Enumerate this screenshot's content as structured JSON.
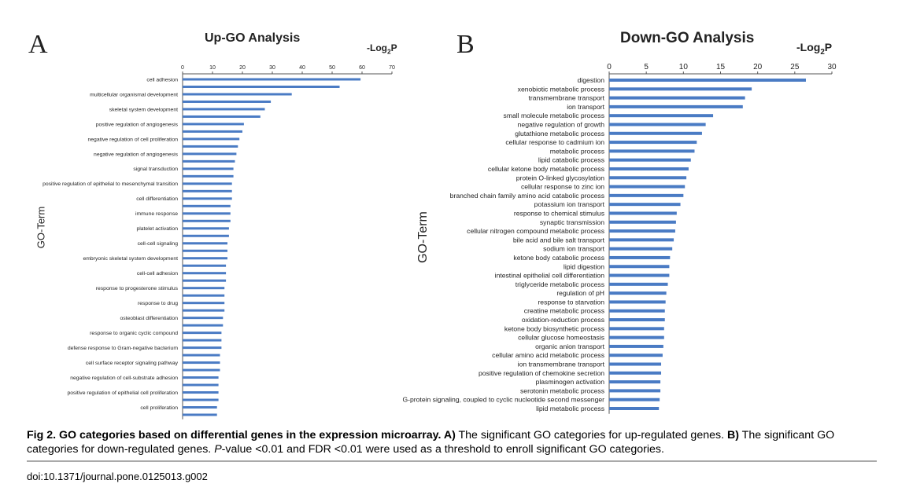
{
  "panels": [
    {
      "letter": "A",
      "title": "Up-GO Analysis",
      "axis_label": "-Log",
      "axis_label_sub": "2",
      "axis_label_tail": "P",
      "ylabel": "GO-Term"
    },
    {
      "letter": "B",
      "title": "Down-GO Analysis",
      "axis_label": "-Log",
      "axis_label_sub": "2",
      "axis_label_tail": "P",
      "ylabel": "GO-Term"
    }
  ],
  "chart_data": [
    {
      "type": "bar",
      "orientation": "horizontal",
      "title": "Up-GO Analysis",
      "xlabel": "-Log2P",
      "ylabel": "GO-Term",
      "xlim": [
        0,
        70
      ],
      "xticks": [
        0,
        10,
        20,
        30,
        40,
        50,
        60,
        70
      ],
      "bar_color": "#4a7bc4",
      "rows": [
        {
          "label": "cell adhesion",
          "value": 59.5,
          "labeled": true
        },
        {
          "label": "",
          "value": 52.5,
          "labeled": false
        },
        {
          "label": "multicellular organismal development",
          "value": 36.5,
          "labeled": true
        },
        {
          "label": "",
          "value": 29.5,
          "labeled": false
        },
        {
          "label": "skeletal system development",
          "value": 27.5,
          "labeled": true
        },
        {
          "label": "",
          "value": 26,
          "labeled": false
        },
        {
          "label": "positive regulation of angiogenesis",
          "value": 20.5,
          "labeled": true
        },
        {
          "label": "",
          "value": 20,
          "labeled": false
        },
        {
          "label": "negative regulation of cell proliferation",
          "value": 19,
          "labeled": true
        },
        {
          "label": "",
          "value": 18.5,
          "labeled": false
        },
        {
          "label": "negative regulation of angiogenesis",
          "value": 18,
          "labeled": true
        },
        {
          "label": "",
          "value": 17.5,
          "labeled": false
        },
        {
          "label": "signal transduction",
          "value": 17,
          "labeled": true
        },
        {
          "label": "",
          "value": 17,
          "labeled": false
        },
        {
          "label": "positive regulation of epithelial to mesenchymal transition",
          "value": 16.5,
          "labeled": true
        },
        {
          "label": "",
          "value": 16.5,
          "labeled": false
        },
        {
          "label": "cell differentiation",
          "value": 16.5,
          "labeled": true
        },
        {
          "label": "",
          "value": 16,
          "labeled": false
        },
        {
          "label": "immune response",
          "value": 16,
          "labeled": true
        },
        {
          "label": "",
          "value": 16,
          "labeled": false
        },
        {
          "label": "platelet activation",
          "value": 15.5,
          "labeled": true
        },
        {
          "label": "",
          "value": 15.5,
          "labeled": false
        },
        {
          "label": "cell-cell signaling",
          "value": 15,
          "labeled": true
        },
        {
          "label": "",
          "value": 15,
          "labeled": false
        },
        {
          "label": "embryonic skeletal system development",
          "value": 15,
          "labeled": true
        },
        {
          "label": "",
          "value": 14.5,
          "labeled": false
        },
        {
          "label": "cell-cell adhesion",
          "value": 14.5,
          "labeled": true
        },
        {
          "label": "",
          "value": 14.5,
          "labeled": false
        },
        {
          "label": "response to progesterone stimulus",
          "value": 14,
          "labeled": true
        },
        {
          "label": "",
          "value": 14,
          "labeled": false
        },
        {
          "label": "response to drug",
          "value": 14,
          "labeled": true
        },
        {
          "label": "",
          "value": 14,
          "labeled": false
        },
        {
          "label": "osteoblast differentiation",
          "value": 13.5,
          "labeled": true
        },
        {
          "label": "",
          "value": 13.5,
          "labeled": false
        },
        {
          "label": "response to organic cyclic compound",
          "value": 13,
          "labeled": true
        },
        {
          "label": "",
          "value": 13,
          "labeled": false
        },
        {
          "label": "defense response to Gram-negative bacterium",
          "value": 13,
          "labeled": true
        },
        {
          "label": "",
          "value": 12.5,
          "labeled": false
        },
        {
          "label": "cell surface receptor signaling pathway",
          "value": 12.5,
          "labeled": true
        },
        {
          "label": "",
          "value": 12.5,
          "labeled": false
        },
        {
          "label": "negative regulation of cell-substrate adhesion",
          "value": 12,
          "labeled": true
        },
        {
          "label": "",
          "value": 12,
          "labeled": false
        },
        {
          "label": "positive regulation of epithelial cell proliferation",
          "value": 12,
          "labeled": true
        },
        {
          "label": "",
          "value": 12,
          "labeled": false
        },
        {
          "label": "cell proliferation",
          "value": 11.5,
          "labeled": true
        },
        {
          "label": "",
          "value": 11.5,
          "labeled": false
        }
      ]
    },
    {
      "type": "bar",
      "orientation": "horizontal",
      "title": "Down-GO Analysis",
      "xlabel": "-Log2P",
      "ylabel": "GO-Term",
      "xlim": [
        0,
        30
      ],
      "xticks": [
        0,
        5,
        10,
        15,
        20,
        25,
        30
      ],
      "bar_color": "#4a7bc4",
      "rows": [
        {
          "label": "digestion",
          "value": 26.5,
          "labeled": true
        },
        {
          "label": "xenobiotic metabolic process",
          "value": 19.2,
          "labeled": true
        },
        {
          "label": "transmembrane transport",
          "value": 18.3,
          "labeled": true
        },
        {
          "label": "ion transport",
          "value": 18,
          "labeled": true
        },
        {
          "label": "small molecule metabolic process",
          "value": 14,
          "labeled": true
        },
        {
          "label": "negative regulation of growth",
          "value": 13,
          "labeled": true
        },
        {
          "label": "glutathione metabolic process",
          "value": 12.5,
          "labeled": true
        },
        {
          "label": "cellular response to cadmium ion",
          "value": 11.8,
          "labeled": true
        },
        {
          "label": "metabolic process",
          "value": 11.5,
          "labeled": true
        },
        {
          "label": "lipid catabolic process",
          "value": 11,
          "labeled": true
        },
        {
          "label": "cellular ketone body metabolic process",
          "value": 10.7,
          "labeled": true
        },
        {
          "label": "protein O-linked glycosylation",
          "value": 10.4,
          "labeled": true
        },
        {
          "label": "cellular response to zinc ion",
          "value": 10.2,
          "labeled": true
        },
        {
          "label": "branched chain family amino acid catabolic process",
          "value": 10,
          "labeled": true
        },
        {
          "label": "potassium ion transport",
          "value": 9.6,
          "labeled": true
        },
        {
          "label": "response to chemical stimulus",
          "value": 9.1,
          "labeled": true
        },
        {
          "label": "synaptic transmission",
          "value": 9,
          "labeled": true
        },
        {
          "label": "cellular nitrogen compound metabolic process",
          "value": 8.9,
          "labeled": true
        },
        {
          "label": "bile acid and bile salt transport",
          "value": 8.7,
          "labeled": true
        },
        {
          "label": "sodium ion transport",
          "value": 8.5,
          "labeled": true
        },
        {
          "label": "ketone body catabolic process",
          "value": 8.2,
          "labeled": true
        },
        {
          "label": "lipid digestion",
          "value": 8.1,
          "labeled": true
        },
        {
          "label": "intestinal epithelial cell differentiation",
          "value": 8.1,
          "labeled": true
        },
        {
          "label": "triglyceride metabolic process",
          "value": 7.9,
          "labeled": true
        },
        {
          "label": "regulation of pH",
          "value": 7.7,
          "labeled": true
        },
        {
          "label": "response to starvation",
          "value": 7.6,
          "labeled": true
        },
        {
          "label": "creatine metabolic process",
          "value": 7.5,
          "labeled": true
        },
        {
          "label": "oxidation-reduction process",
          "value": 7.5,
          "labeled": true
        },
        {
          "label": "ketone body biosynthetic process",
          "value": 7.4,
          "labeled": true
        },
        {
          "label": "cellular glucose homeostasis",
          "value": 7.4,
          "labeled": true
        },
        {
          "label": "organic anion transport",
          "value": 7.3,
          "labeled": true
        },
        {
          "label": "cellular amino acid metabolic process",
          "value": 7.2,
          "labeled": true
        },
        {
          "label": "ion transmembrane transport",
          "value": 7,
          "labeled": true
        },
        {
          "label": "positive regulation of chemokine secretion",
          "value": 7,
          "labeled": true
        },
        {
          "label": "plasminogen activation",
          "value": 6.9,
          "labeled": true
        },
        {
          "label": "serotonin metabolic process",
          "value": 6.9,
          "labeled": true
        },
        {
          "label": "G-protein signaling, coupled to cyclic nucleotide second messenger",
          "value": 6.8,
          "labeled": true
        },
        {
          "label": "lipid metabolic process",
          "value": 6.7,
          "labeled": true
        }
      ]
    }
  ],
  "caption": {
    "lead": "Fig 2. GO categories based on differential genes in the expression microarray. A)",
    "a_text": " The significant GO categories for up-regulated genes. ",
    "b_marker": "B)",
    "b_text": " The significant GO categories for down-regulated genes. ",
    "p_italic": "P",
    "tail": "-value <0.01 and FDR <0.01 were used as a threshold to enroll significant GO categories."
  },
  "doi": "doi:10.1371/journal.pone.0125013.g002"
}
